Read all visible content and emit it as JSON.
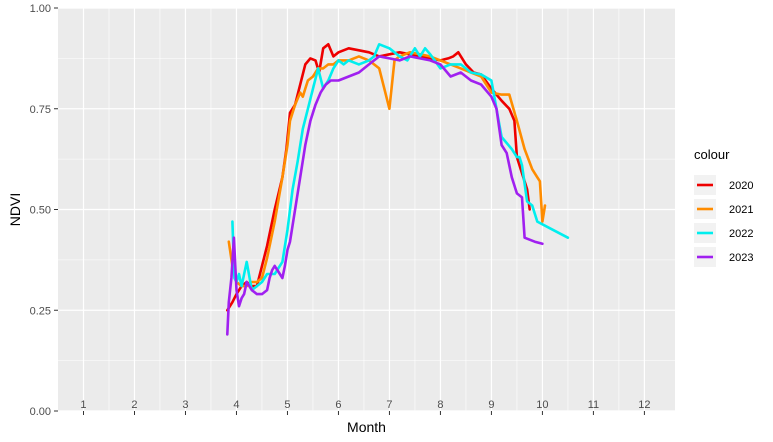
{
  "chart_data": {
    "type": "line",
    "xlabel": "Month",
    "ylabel": "NDVI",
    "xlim": [
      0.5,
      12.6
    ],
    "ylim": [
      0,
      1
    ],
    "x_ticks": [
      1,
      2,
      3,
      4,
      5,
      6,
      7,
      8,
      9,
      10,
      11,
      12
    ],
    "x_tick_labels": [
      "1",
      "2",
      "3",
      "4",
      "5",
      "6",
      "7",
      "8",
      "9",
      "10",
      "11",
      "12"
    ],
    "y_ticks": [
      0,
      0.25,
      0.5,
      0.75,
      1
    ],
    "y_tick_labels": [
      "0.00",
      "0.25",
      "0.50",
      "0.75",
      "1.00"
    ],
    "grid": true,
    "legend": {
      "title": "colour",
      "position": "right"
    },
    "series": [
      {
        "name": "2020",
        "color": "#ee0000",
        "x": [
          3.82,
          3.92,
          4.0,
          4.1,
          4.2,
          4.3,
          4.4,
          4.5,
          4.6,
          4.75,
          4.9,
          4.98,
          5.05,
          5.15,
          5.25,
          5.35,
          5.45,
          5.55,
          5.62,
          5.7,
          5.8,
          5.9,
          6.0,
          6.2,
          6.4,
          6.6,
          6.8,
          7.0,
          7.2,
          7.4,
          7.6,
          7.8,
          8.0,
          8.15,
          8.25,
          8.35,
          8.5,
          8.65,
          8.8,
          9.0,
          9.2,
          9.35,
          9.45,
          9.5,
          9.6,
          9.7,
          9.75
        ],
        "y": [
          0.25,
          0.27,
          0.29,
          0.31,
          0.32,
          0.31,
          0.31,
          0.36,
          0.41,
          0.5,
          0.58,
          0.65,
          0.74,
          0.76,
          0.81,
          0.86,
          0.875,
          0.87,
          0.84,
          0.9,
          0.91,
          0.88,
          0.89,
          0.9,
          0.895,
          0.89,
          0.88,
          0.885,
          0.89,
          0.885,
          0.88,
          0.875,
          0.87,
          0.875,
          0.88,
          0.89,
          0.86,
          0.84,
          0.835,
          0.8,
          0.77,
          0.75,
          0.72,
          0.63,
          0.59,
          0.55,
          0.5
        ]
      },
      {
        "name": "2021",
        "color": "#ff8c00",
        "x": [
          3.85,
          3.92,
          4.0,
          4.1,
          4.2,
          4.3,
          4.4,
          4.5,
          4.6,
          4.75,
          4.9,
          5.0,
          5.05,
          5.15,
          5.25,
          5.3,
          5.35,
          5.4,
          5.5,
          5.6,
          5.7,
          5.8,
          5.9,
          6.0,
          6.2,
          6.4,
          6.6,
          6.8,
          6.9,
          7.0,
          7.1,
          7.2,
          7.4,
          7.6,
          7.8,
          8.0,
          8.2,
          8.4,
          8.6,
          8.8,
          9.0,
          9.2,
          9.35,
          9.5,
          9.65,
          9.8,
          9.9,
          9.95,
          10.0,
          10.05
        ],
        "y": [
          0.42,
          0.36,
          0.32,
          0.31,
          0.31,
          0.32,
          0.32,
          0.33,
          0.38,
          0.47,
          0.58,
          0.66,
          0.72,
          0.76,
          0.79,
          0.78,
          0.8,
          0.82,
          0.83,
          0.85,
          0.85,
          0.86,
          0.86,
          0.87,
          0.87,
          0.88,
          0.87,
          0.85,
          0.8,
          0.75,
          0.87,
          0.88,
          0.89,
          0.885,
          0.88,
          0.87,
          0.86,
          0.85,
          0.84,
          0.83,
          0.79,
          0.785,
          0.785,
          0.72,
          0.65,
          0.6,
          0.58,
          0.57,
          0.47,
          0.51
        ]
      },
      {
        "name": "2022",
        "color": "#00eeee",
        "x": [
          3.92,
          3.96,
          4.0,
          4.05,
          4.1,
          4.2,
          4.3,
          4.4,
          4.5,
          4.6,
          4.75,
          4.9,
          5.0,
          5.1,
          5.2,
          5.3,
          5.4,
          5.5,
          5.6,
          5.7,
          5.8,
          5.9,
          6.0,
          6.1,
          6.2,
          6.4,
          6.6,
          6.7,
          6.8,
          7.0,
          7.2,
          7.35,
          7.5,
          7.6,
          7.7,
          7.8,
          8.0,
          8.2,
          8.4,
          8.6,
          8.8,
          9.0,
          9.1,
          9.2,
          9.4,
          9.5,
          9.55,
          9.6,
          9.7,
          9.8,
          9.9,
          10.2,
          10.5
        ],
        "y": [
          0.47,
          0.33,
          0.32,
          0.34,
          0.31,
          0.37,
          0.3,
          0.31,
          0.32,
          0.34,
          0.34,
          0.37,
          0.45,
          0.55,
          0.62,
          0.7,
          0.75,
          0.8,
          0.85,
          0.8,
          0.82,
          0.85,
          0.87,
          0.86,
          0.87,
          0.86,
          0.87,
          0.88,
          0.91,
          0.9,
          0.88,
          0.87,
          0.9,
          0.88,
          0.9,
          0.885,
          0.85,
          0.86,
          0.86,
          0.84,
          0.835,
          0.82,
          0.75,
          0.68,
          0.65,
          0.63,
          0.63,
          0.61,
          0.52,
          0.51,
          0.47,
          0.45,
          0.43
        ]
      },
      {
        "name": "2023",
        "color": "#a020f0",
        "x": [
          3.82,
          3.85,
          3.9,
          3.95,
          4.0,
          4.05,
          4.1,
          4.15,
          4.2,
          4.3,
          4.4,
          4.5,
          4.6,
          4.65,
          4.7,
          4.75,
          4.8,
          4.9,
          4.95,
          5.0,
          5.05,
          5.15,
          5.25,
          5.35,
          5.45,
          5.55,
          5.65,
          5.75,
          5.85,
          6.0,
          6.2,
          6.4,
          6.6,
          6.8,
          7.0,
          7.2,
          7.4,
          7.6,
          7.8,
          8.0,
          8.2,
          8.4,
          8.6,
          8.8,
          9.0,
          9.1,
          9.2,
          9.3,
          9.4,
          9.5,
          9.6,
          9.65,
          9.75,
          9.85,
          10.0
        ],
        "y": [
          0.19,
          0.27,
          0.33,
          0.43,
          0.3,
          0.26,
          0.28,
          0.29,
          0.32,
          0.3,
          0.29,
          0.29,
          0.3,
          0.33,
          0.35,
          0.36,
          0.35,
          0.33,
          0.36,
          0.4,
          0.42,
          0.5,
          0.58,
          0.66,
          0.72,
          0.76,
          0.79,
          0.81,
          0.82,
          0.82,
          0.83,
          0.84,
          0.86,
          0.88,
          0.875,
          0.87,
          0.88,
          0.875,
          0.87,
          0.86,
          0.83,
          0.84,
          0.82,
          0.81,
          0.78,
          0.75,
          0.66,
          0.64,
          0.58,
          0.54,
          0.53,
          0.43,
          0.425,
          0.42,
          0.415
        ]
      }
    ]
  }
}
